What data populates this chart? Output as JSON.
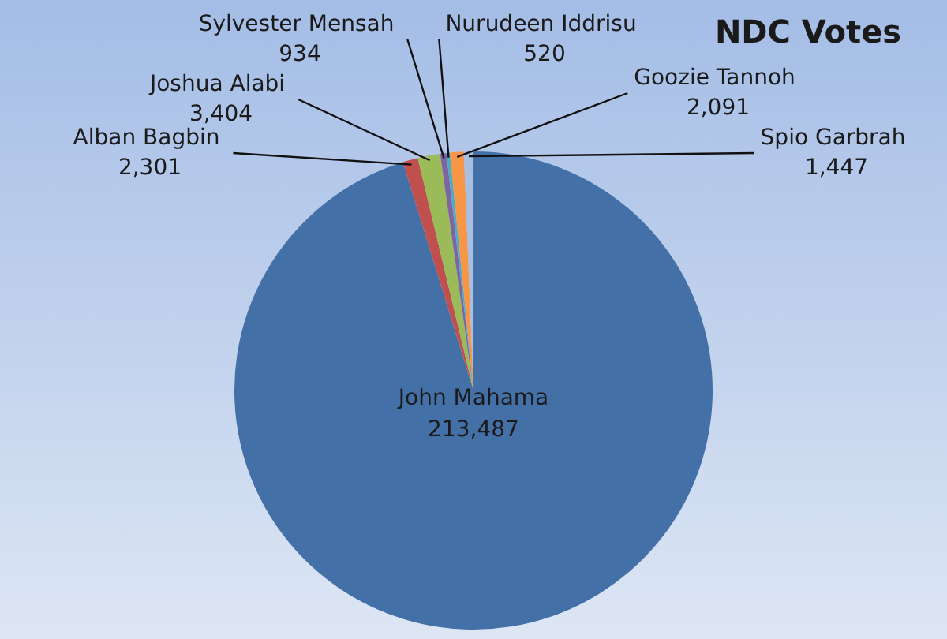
{
  "chart_data": {
    "type": "pie",
    "title": "NDC Votes",
    "categories": [
      "John Mahama",
      "Alban Bagbin",
      "Joshua Alabi",
      "Sylvester Mensah",
      "Nurudeen Iddrisu",
      "Goozie Tannoh",
      "Spio Garbrah"
    ],
    "values": [
      213487,
      2301,
      3404,
      934,
      520,
      2091,
      1447
    ],
    "value_labels": [
      "213,487",
      "2,301",
      "3,404",
      "934",
      "520",
      "2,091",
      "1,447"
    ],
    "colors": [
      "#4470a8",
      "#c0504d",
      "#9bbb59",
      "#8064a2",
      "#4bacc6",
      "#f79646",
      "#a9bfe2"
    ],
    "legend": false
  }
}
